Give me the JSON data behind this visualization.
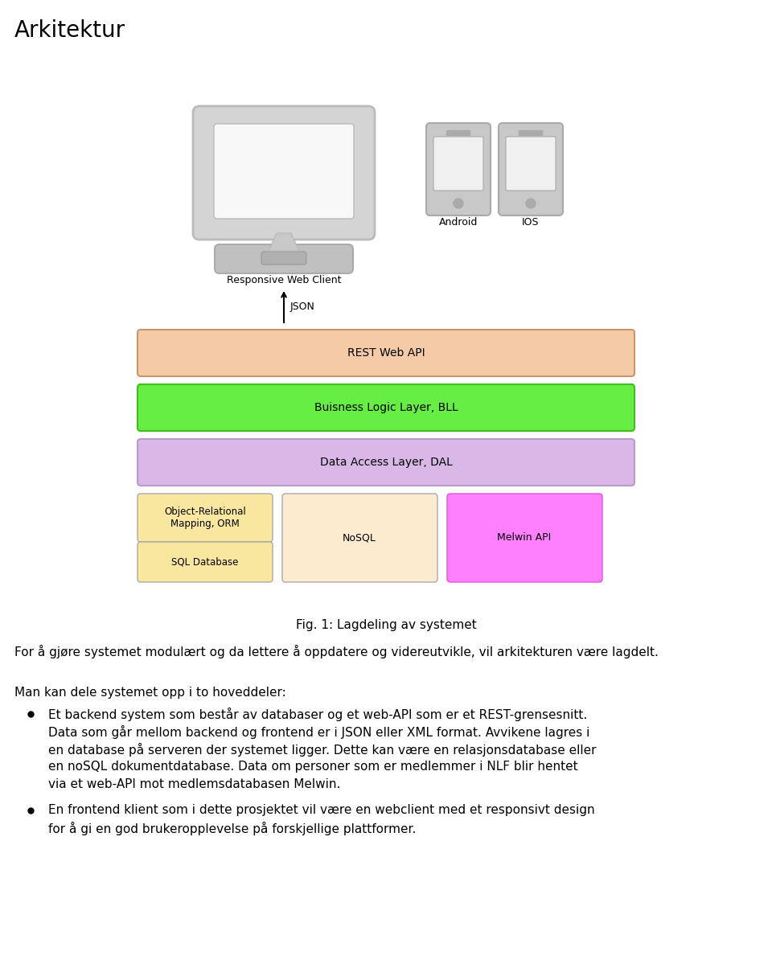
{
  "title": "Arkitektur",
  "title_fontsize": 20,
  "background_color": "#ffffff",
  "fig_caption": "Fig. 1: Lagdeling av systemet",
  "paragraph1": "For å gjøre systemet modulært og da lettere å oppdatere og videreutvikle, vil arkitekturen være lagdelt.",
  "paragraph2_header": "Man kan dele systemet opp i to hoveddeler:",
  "bullet1_line1": "Et backend system som består av databaser og et web-API som er et REST-grensesnitt.",
  "bullet1_line2": "Data som går mellom backend og frontend er i JSON eller XML format. Avvikene lagres i",
  "bullet1_line3": "en database på serveren der systemet ligger. Dette kan være en relasjonsdatabase eller",
  "bullet1_line4": "en noSQL dokumentdatabase. Data om personer som er medlemmer i NLF blir hentet",
  "bullet1_line5": "via et web-API mot medlemsdatabasen Melwin.",
  "bullet2_line1": "En frontend klient som i dette prosjektet vil være en webclient med et responsivt design",
  "bullet2_line2": "for å gi en god brukeropplevelse på forskjellige plattformer.",
  "layers": [
    {
      "label": "REST Web API",
      "color": "#f5cba7",
      "edgecolor": "#c8956a"
    },
    {
      "label": "Buisness Logic Layer, BLL",
      "color": "#66ee44",
      "edgecolor": "#44bb22"
    },
    {
      "label": "Data Access Layer, DAL",
      "color": "#d9b8e8",
      "edgecolor": "#bb99cc"
    }
  ],
  "arrow_label": "JSON",
  "label_web": "Responsive Web Client",
  "label_android": "Android",
  "label_ios": "IOS",
  "monitor_color_outer": "#d0d0d0",
  "monitor_color_inner": "#f4f4f4",
  "monitor_color_base": "#c4c4c4",
  "phone_color_outer": "#c8c8c8",
  "phone_color_screen": "#f0f0f0"
}
